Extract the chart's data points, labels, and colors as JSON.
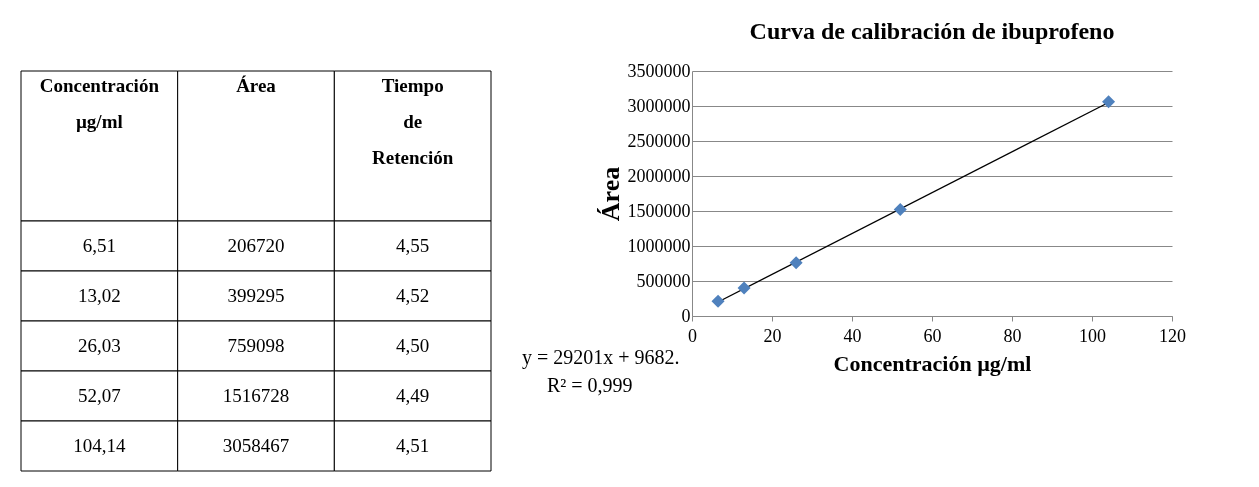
{
  "chart_data": [
    {
      "type": "other",
      "annotations": [
        "Concentración µg/ml",
        "Área",
        "Tiempo de Retención",
        "6,51",
        "206720",
        "4,55",
        "13,02",
        "399295",
        "4,52",
        "26,03",
        "759098",
        "4,50",
        "52,07",
        "1516728",
        "4,49",
        "104,14",
        "3058467",
        "4,51"
      ]
    },
    {
      "type": "scatter",
      "title": "Curva de calibración de ibuprofeno",
      "xlabel": "Concentración µg/ml",
      "ylabel": "Área",
      "x": [
        6.51,
        13.02,
        26.03,
        52.07,
        104.14
      ],
      "xlim": [
        0,
        120
      ],
      "xticks": [
        0,
        20,
        40,
        60,
        80,
        100,
        120
      ],
      "ylim": [
        0,
        3500000
      ],
      "yticks": [
        0,
        500000,
        1000000,
        1500000,
        2000000,
        2500000,
        3000000,
        3500000
      ],
      "grid": "y",
      "series": [
        {
          "type": "scatter",
          "marker": "diamond",
          "color": "#4f81bd",
          "values": [
            210000,
            400000,
            760000,
            1520000,
            3060000
          ]
        },
        {
          "type": "line",
          "marker": "none",
          "color": "#000000",
          "x": [
            6.51,
            104.14
          ],
          "values": [
            200000,
            3050000
          ]
        }
      ],
      "annotations": [
        "y = 29201x + 9682.",
        "R² = 0,999"
      ]
    }
  ]
}
